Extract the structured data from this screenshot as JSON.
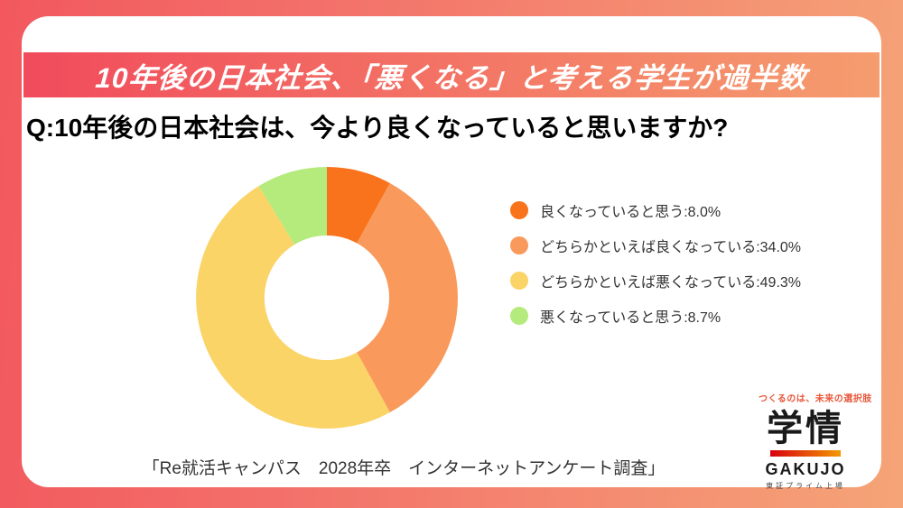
{
  "banner": {
    "title": "10年後の日本社会、「悪くなる」と考える学生が過半数"
  },
  "question": "Q:10年後の日本社会は、今より良くなっていると思いますか?",
  "chart_data": {
    "type": "pie",
    "subtype": "donut",
    "categories": [
      "良くなっていると思う",
      "どちらかといえば良くなっている",
      "どちらかといえば悪くなっている",
      "悪くなっていると思う"
    ],
    "values": [
      8.0,
      34.0,
      49.3,
      8.7
    ],
    "unit": "%",
    "colors": [
      "#F8731B",
      "#F99A5C",
      "#FAD466",
      "#B5EA7C"
    ],
    "start_angle_deg": 0,
    "direction": "clockwise",
    "inner_radius_ratio": 0.476,
    "legend_position": "right",
    "title": "",
    "source": "「Re就活キャンパス　2028年卒　インターネットアンケート調査」"
  },
  "legend": {
    "items": [
      {
        "text": "良くなっていると思う:8.0%",
        "color": "#F8731B"
      },
      {
        "text": "どちらかといえば良くなっている:34.0%",
        "color": "#F99A5C"
      },
      {
        "text": "どちらかといえば悪くなっている:49.3%",
        "color": "#FAD466"
      },
      {
        "text": "悪くなっていると思う:8.7%",
        "color": "#B5EA7C"
      }
    ]
  },
  "caption": "「Re就活キャンパス　2028年卒　インターネットアンケート調査」",
  "logo": {
    "tagline": "つくるのは、未来の選択肢",
    "name_jp": "学情",
    "name_en": "GAKUJO",
    "listing": "東証プライム上場",
    "accent_red": "#D7000F",
    "accent_orange": "#F39800"
  },
  "colors": {
    "page_bg_start": "#F2585E",
    "page_bg_end": "#F5A477",
    "banner_start": "#F14B5C",
    "banner_end": "#F59D6E",
    "card_bg": "#FFFFFF"
  }
}
